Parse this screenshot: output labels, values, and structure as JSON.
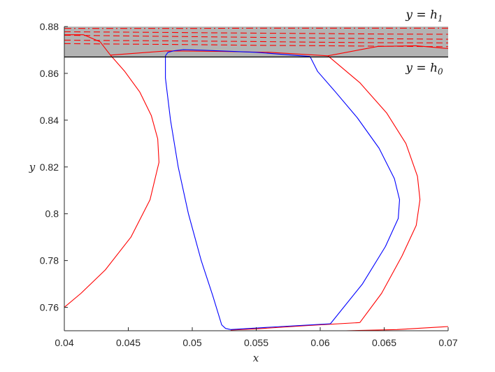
{
  "chart_data": {
    "type": "line",
    "xlabel": "x",
    "ylabel": "y",
    "xlim": [
      0.04,
      0.07
    ],
    "ylim": [
      0.75,
      0.88
    ],
    "x_ticks": [
      "0.04",
      "0.045",
      "0.05",
      "0.055",
      "0.06",
      "0.065",
      "0.07"
    ],
    "y_ticks": [
      "0.76",
      "0.78",
      "0.8",
      "0.82",
      "0.84",
      "0.86",
      "0.88"
    ],
    "annotations": [
      {
        "base": "y = h",
        "sub": "1",
        "x": 0.0696,
        "y": 0.8835
      },
      {
        "base": "y = h",
        "sub": "0",
        "x": 0.0696,
        "y": 0.8607
      }
    ],
    "shaded_band": {
      "y_from": 0.867,
      "y_to": 0.88,
      "color": "#b3b3b3"
    },
    "colors": {
      "red": "#ff0000",
      "blue": "#0000ff",
      "band": "#b3b3b3",
      "axis": "#262626"
    },
    "series": [
      {
        "color": "#ff0000",
        "style": "solid",
        "x": [
          0.04,
          0.0415,
          0.0428,
          0.0436
        ],
        "y": [
          0.8765,
          0.8765,
          0.8735,
          0.8678
        ]
      },
      {
        "color": "#ff0000",
        "style": "solid",
        "x": [
          0.0436,
          0.0447,
          0.0459,
          0.0468,
          0.0473,
          0.0474,
          0.0467,
          0.0452,
          0.0432,
          0.0413,
          0.04
        ],
        "y": [
          0.8678,
          0.861,
          0.852,
          0.842,
          0.832,
          0.822,
          0.806,
          0.79,
          0.776,
          0.766,
          0.76
        ]
      },
      {
        "color": "#ff0000",
        "style": "solid",
        "x": [
          0.0436,
          0.048,
          0.052,
          0.056,
          0.0606
        ],
        "y": [
          0.8678,
          0.8696,
          0.8694,
          0.869,
          0.8675
        ]
      },
      {
        "color": "#ff0000",
        "style": "solid",
        "x": [
          0.0606,
          0.0631,
          0.0652,
          0.0667,
          0.0676,
          0.0678,
          0.0675,
          0.0664,
          0.0648,
          0.0631
        ],
        "y": [
          0.8675,
          0.856,
          0.843,
          0.83,
          0.816,
          0.806,
          0.795,
          0.782,
          0.766,
          0.7535
        ]
      },
      {
        "color": "#ff0000",
        "style": "solid",
        "x": [
          0.0631,
          0.059,
          0.055,
          0.053
        ],
        "y": [
          0.7535,
          0.7522,
          0.7508,
          0.7503
        ]
      },
      {
        "color": "#ff0000",
        "style": "solid",
        "x": [
          0.0606,
          0.0645,
          0.0675,
          0.07
        ],
        "y": [
          0.8675,
          0.8715,
          0.8718,
          0.8706
        ]
      },
      {
        "color": "#ff0000",
        "style": "solid",
        "x": [
          0.062,
          0.066,
          0.07
        ],
        "y": [
          0.75,
          0.7505,
          0.7518
        ]
      },
      {
        "color": "#0000ff",
        "style": "solid",
        "x": [
          0.0479,
          0.0479,
          0.0483,
          0.0489,
          0.0497,
          0.0507,
          0.0516,
          0.0523,
          0.0526,
          0.053
        ],
        "y": [
          0.8675,
          0.858,
          0.84,
          0.82,
          0.8,
          0.78,
          0.765,
          0.7525,
          0.751,
          0.7505
        ]
      },
      {
        "color": "#0000ff",
        "style": "solid",
        "x": [
          0.053,
          0.056,
          0.0608
        ],
        "y": [
          0.7505,
          0.7515,
          0.753
        ]
      },
      {
        "color": "#0000ff",
        "style": "solid",
        "x": [
          0.0608,
          0.0633,
          0.0651,
          0.0661,
          0.0662,
          0.0658,
          0.0646,
          0.0629,
          0.0612,
          0.0598,
          0.0592
        ],
        "y": [
          0.753,
          0.77,
          0.786,
          0.798,
          0.806,
          0.815,
          0.828,
          0.841,
          0.852,
          0.8608,
          0.8672
        ]
      },
      {
        "color": "#0000ff",
        "style": "solid",
        "x": [
          0.0592,
          0.055,
          0.0508,
          0.0493,
          0.0486,
          0.0481,
          0.0479
        ],
        "y": [
          0.8672,
          0.869,
          0.8699,
          0.8701,
          0.8697,
          0.869,
          0.8675
        ]
      },
      {
        "color": "#ff0000",
        "style": "dashdot",
        "x": [
          0.04,
          0.045,
          0.05,
          0.055,
          0.06,
          0.065,
          0.07
        ],
        "y": [
          0.8792,
          0.8792,
          0.8792,
          0.8793,
          0.8793,
          0.8793,
          0.8793
        ]
      },
      {
        "color": "#ff0000",
        "style": "dashed",
        "x": [
          0.04,
          0.045,
          0.05,
          0.055,
          0.06,
          0.065,
          0.07
        ],
        "y": [
          0.8778,
          0.8776,
          0.8774,
          0.8772,
          0.877,
          0.8768,
          0.8767
        ]
      },
      {
        "color": "#ff0000",
        "style": "dashed",
        "x": [
          0.04,
          0.045,
          0.05,
          0.055,
          0.06,
          0.065,
          0.07
        ],
        "y": [
          0.8763,
          0.876,
          0.8757,
          0.8754,
          0.8751,
          0.8748,
          0.8746
        ]
      },
      {
        "color": "#ff0000",
        "style": "dashed",
        "x": [
          0.04,
          0.045,
          0.05,
          0.055,
          0.06,
          0.065,
          0.07
        ],
        "y": [
          0.8742,
          0.874,
          0.8738,
          0.8736,
          0.8733,
          0.8731,
          0.873
        ]
      },
      {
        "color": "#ff0000",
        "style": "dashed",
        "x": [
          0.04,
          0.045,
          0.05,
          0.055,
          0.06,
          0.065,
          0.07
        ],
        "y": [
          0.8727,
          0.8725,
          0.8723,
          0.872,
          0.8718,
          0.8716,
          0.8714
        ]
      }
    ]
  }
}
